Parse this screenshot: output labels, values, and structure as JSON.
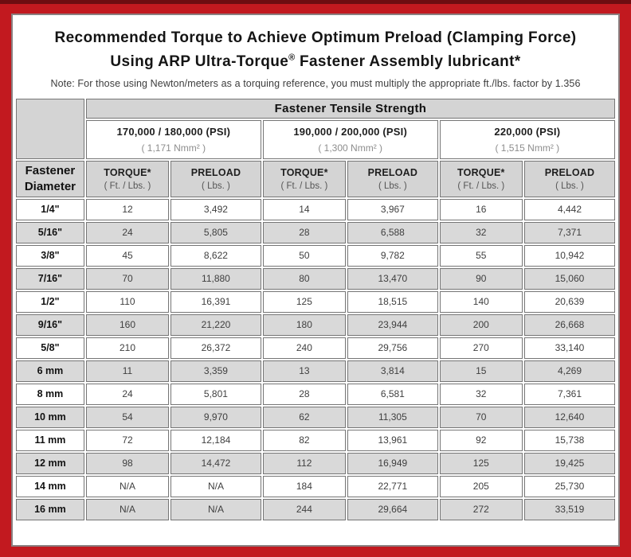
{
  "title": {
    "line1": "Recommended Torque to Achieve Optimum Preload (Clamping Force)",
    "line2_pre": "Using ARP Ultra-Torque",
    "line2_sup": "®",
    "line2_post": " Fastener Assembly lubricant*"
  },
  "note": "Note: For those using Newton/meters as a torquing reference, you must multiply the appropriate ft./lbs. factor by 1.356",
  "colors": {
    "frame_red": "#c2191f",
    "frame_top_dark": "#6d0d11",
    "header_gray": "#d4d4d4",
    "row_shade_gray": "#d9d9d9",
    "cell_border_gray": "#757575"
  },
  "table": {
    "tensile_header": "Fastener Tensile Strength",
    "diameter_header_line1": "Fastener",
    "diameter_header_line2": "Diameter",
    "groups": [
      {
        "psi": "170,000 / 180,000 (PSI)",
        "nmm": "( 1,171 Nmm² )"
      },
      {
        "psi": "190,000 / 200,000 (PSI)",
        "nmm": "( 1,300 Nmm² )"
      },
      {
        "psi": "220,000 (PSI)",
        "nmm": "( 1,515 Nmm² )"
      }
    ],
    "column_pair": {
      "torque_label": "TORQUE*",
      "torque_sub": "( Ft. / Lbs. )",
      "preload_label": "PRELOAD",
      "preload_sub": "( Lbs. )"
    },
    "rows": [
      [
        "1/4\"",
        "12",
        "3,492",
        "14",
        "3,967",
        "16",
        "4,442"
      ],
      [
        "5/16\"",
        "24",
        "5,805",
        "28",
        "6,588",
        "32",
        "7,371"
      ],
      [
        "3/8\"",
        "45",
        "8,622",
        "50",
        "9,782",
        "55",
        "10,942"
      ],
      [
        "7/16\"",
        "70",
        "11,880",
        "80",
        "13,470",
        "90",
        "15,060"
      ],
      [
        "1/2\"",
        "110",
        "16,391",
        "125",
        "18,515",
        "140",
        "20,639"
      ],
      [
        "9/16\"",
        "160",
        "21,220",
        "180",
        "23,944",
        "200",
        "26,668"
      ],
      [
        "5/8\"",
        "210",
        "26,372",
        "240",
        "29,756",
        "270",
        "33,140"
      ],
      [
        "6 mm",
        "11",
        "3,359",
        "13",
        "3,814",
        "15",
        "4,269"
      ],
      [
        "8 mm",
        "24",
        "5,801",
        "28",
        "6,581",
        "32",
        "7,361"
      ],
      [
        "10 mm",
        "54",
        "9,970",
        "62",
        "11,305",
        "70",
        "12,640"
      ],
      [
        "11 mm",
        "72",
        "12,184",
        "82",
        "13,961",
        "92",
        "15,738"
      ],
      [
        "12 mm",
        "98",
        "14,472",
        "112",
        "16,949",
        "125",
        "19,425"
      ],
      [
        "14 mm",
        "N/A",
        "N/A",
        "184",
        "22,771",
        "205",
        "25,730"
      ],
      [
        "16 mm",
        "N/A",
        "N/A",
        "244",
        "29,664",
        "272",
        "33,519"
      ]
    ]
  }
}
